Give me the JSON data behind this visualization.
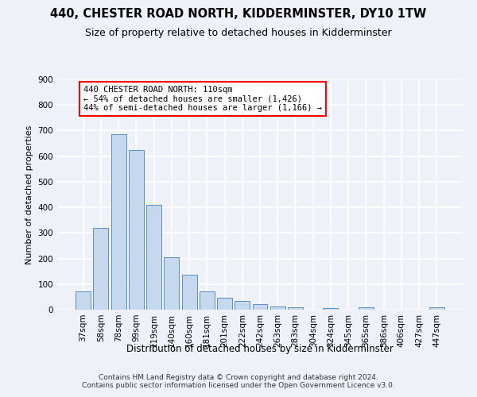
{
  "title": "440, CHESTER ROAD NORTH, KIDDERMINSTER, DY10 1TW",
  "subtitle": "Size of property relative to detached houses in Kidderminster",
  "xlabel": "Distribution of detached houses by size in Kidderminster",
  "ylabel": "Number of detached properties",
  "categories": [
    "37sqm",
    "58sqm",
    "78sqm",
    "99sqm",
    "119sqm",
    "140sqm",
    "160sqm",
    "181sqm",
    "201sqm",
    "222sqm",
    "242sqm",
    "263sqm",
    "283sqm",
    "304sqm",
    "324sqm",
    "345sqm",
    "365sqm",
    "386sqm",
    "406sqm",
    "427sqm",
    "447sqm"
  ],
  "values": [
    70,
    320,
    685,
    625,
    410,
    205,
    138,
    70,
    48,
    35,
    23,
    12,
    8,
    0,
    5,
    0,
    8,
    0,
    0,
    0,
    8
  ],
  "bar_color": "#c5d8ed",
  "bar_edge_color": "#5a8fc0",
  "annotation_line1": "440 CHESTER ROAD NORTH: 110sqm",
  "annotation_line2": "← 54% of detached houses are smaller (1,426)",
  "annotation_line3": "44% of semi-detached houses are larger (1,166) →",
  "ylim": [
    0,
    900
  ],
  "yticks": [
    0,
    100,
    200,
    300,
    400,
    500,
    600,
    700,
    800,
    900
  ],
  "background_color": "#eef2f8",
  "grid_color": "#ffffff",
  "footer": "Contains HM Land Registry data © Crown copyright and database right 2024.\nContains public sector information licensed under the Open Government Licence v3.0.",
  "title_fontsize": 10.5,
  "subtitle_fontsize": 9,
  "xlabel_fontsize": 8.5,
  "ylabel_fontsize": 8,
  "tick_fontsize": 7.5,
  "annotation_fontsize": 7.5,
  "footer_fontsize": 6.5
}
